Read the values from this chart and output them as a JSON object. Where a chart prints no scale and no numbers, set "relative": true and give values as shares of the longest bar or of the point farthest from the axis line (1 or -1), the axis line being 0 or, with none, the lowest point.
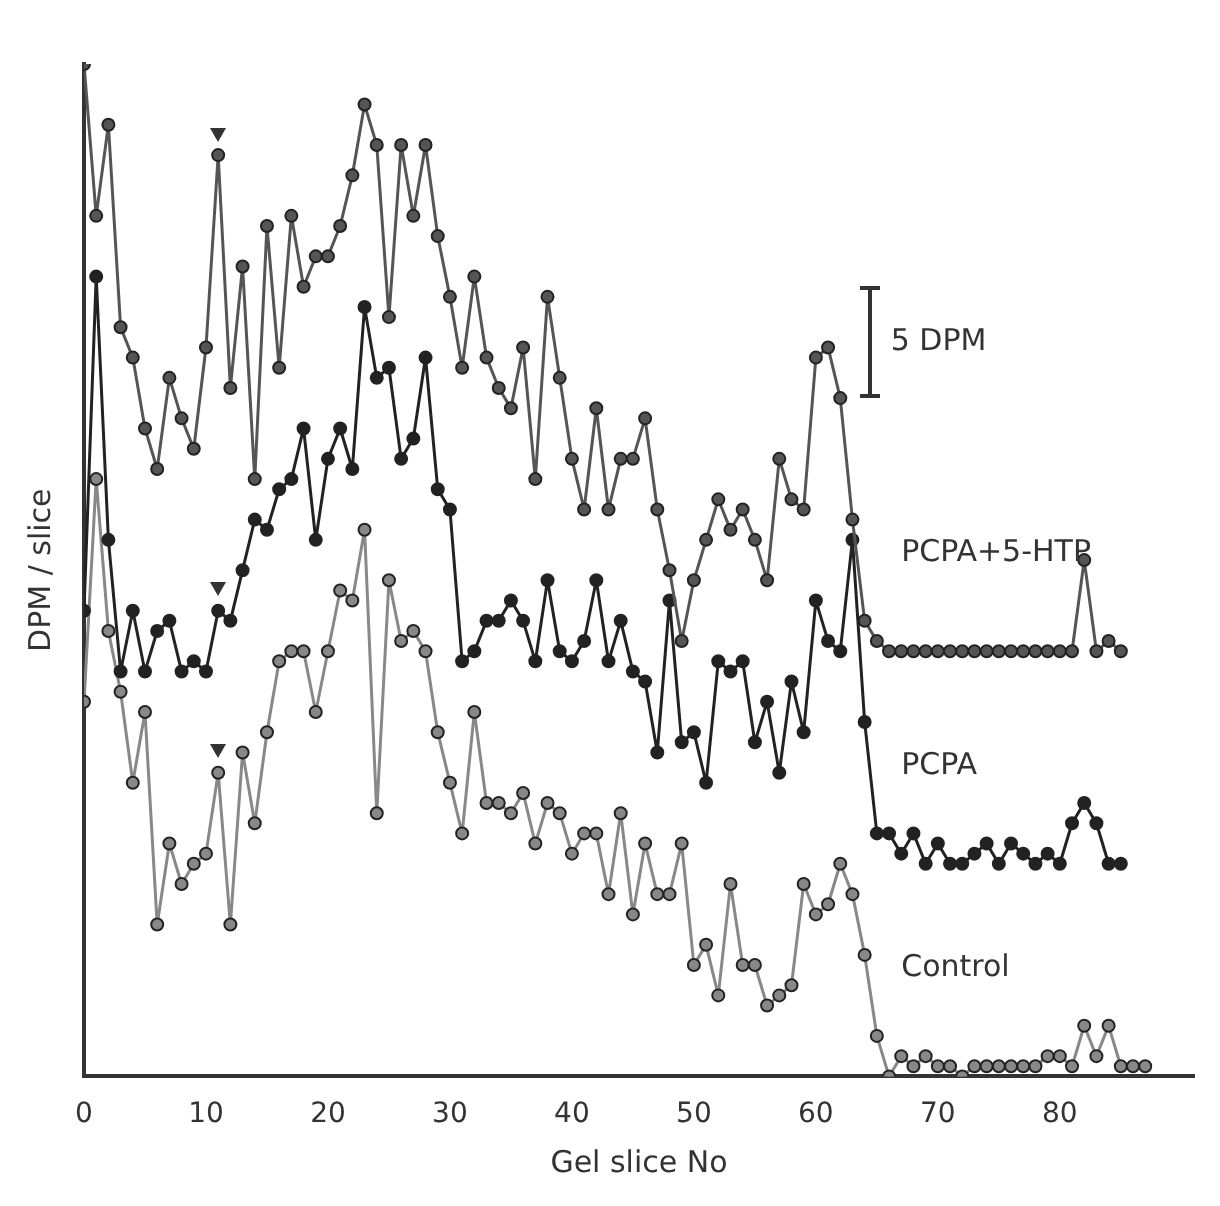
{
  "chart_data": {
    "type": "line",
    "xlabel": "Gel slice No",
    "ylabel": "DPM / slice",
    "relative": true,
    "x": [
      0,
      1,
      2,
      3,
      4,
      5,
      6,
      7,
      8,
      9,
      10,
      11,
      12,
      13,
      14,
      15,
      16,
      17,
      18,
      19,
      20,
      21,
      22,
      23,
      24,
      25,
      26,
      27,
      28,
      29,
      30,
      31,
      32,
      33,
      34,
      35,
      36,
      37,
      38,
      39,
      40,
      41,
      42,
      43,
      44,
      45,
      46,
      47,
      48,
      49,
      50,
      51,
      52,
      53,
      54,
      55,
      56,
      57,
      58,
      59,
      60,
      61,
      62,
      63,
      64,
      65,
      66,
      67,
      68,
      69,
      70,
      71,
      72,
      73,
      74,
      75,
      76,
      77,
      78,
      79,
      80,
      81,
      82,
      83,
      84,
      85,
      86,
      87
    ],
    "xlim": [
      0,
      91
    ],
    "xticks": [
      0,
      10,
      20,
      30,
      40,
      50,
      60,
      70,
      80
    ],
    "series": [
      {
        "name": "PCPA+5-HTP",
        "color": "#555555",
        "values": [
          1,
          0.85,
          0.94,
          0.74,
          0.71,
          0.64,
          0.6,
          0.69,
          0.65,
          0.62,
          0.72,
          0.91,
          0.68,
          0.8,
          0.59,
          0.84,
          0.7,
          0.85,
          0.78,
          0.81,
          0.81,
          0.84,
          0.89,
          0.96,
          0.92,
          0.75,
          0.92,
          0.85,
          0.92,
          0.83,
          0.77,
          0.7,
          0.79,
          0.71,
          0.68,
          0.66,
          0.72,
          0.59,
          0.77,
          0.69,
          0.61,
          0.56,
          0.66,
          0.56,
          0.61,
          0.61,
          0.65,
          0.56,
          0.5,
          0.43,
          0.49,
          0.53,
          0.57,
          0.54,
          0.56,
          0.53,
          0.49,
          0.61,
          0.57,
          0.56,
          0.71,
          0.72,
          0.67,
          0.55,
          0.45,
          0.43,
          0.42,
          0.42,
          0.42,
          0.42,
          0.42,
          0.42,
          0.42,
          0.42,
          0.42,
          0.42,
          0.42,
          0.42,
          0.42,
          0.42,
          0.42,
          0.42,
          0.51,
          0.42,
          0.43,
          0.42,
          null,
          null
        ]
      },
      {
        "name": "PCPA",
        "color": "#222222",
        "values": [
          0.46,
          0.79,
          0.53,
          0.4,
          0.46,
          0.4,
          0.44,
          0.45,
          0.4,
          0.41,
          0.4,
          0.46,
          0.45,
          0.5,
          0.55,
          0.54,
          0.58,
          0.59,
          0.64,
          0.53,
          0.61,
          0.64,
          0.6,
          0.76,
          0.69,
          0.7,
          0.61,
          0.63,
          0.71,
          0.58,
          0.56,
          0.41,
          0.42,
          0.45,
          0.45,
          0.47,
          0.45,
          0.41,
          0.49,
          0.42,
          0.41,
          0.43,
          0.49,
          0.41,
          0.45,
          0.4,
          0.39,
          0.32,
          0.47,
          0.33,
          0.34,
          0.29,
          0.41,
          0.4,
          0.41,
          0.33,
          0.37,
          0.3,
          0.39,
          0.34,
          0.47,
          0.43,
          0.42,
          0.53,
          0.35,
          0.24,
          0.24,
          0.22,
          0.24,
          0.21,
          0.23,
          0.21,
          0.21,
          0.22,
          0.23,
          0.21,
          0.23,
          0.22,
          0.21,
          0.22,
          0.21,
          0.25,
          0.27,
          0.25,
          0.21,
          0.21,
          null,
          null
        ]
      },
      {
        "name": "Control",
        "color": "#888888",
        "values": [
          0.37,
          0.59,
          0.44,
          0.38,
          0.29,
          0.36,
          0.15,
          0.23,
          0.19,
          0.21,
          0.22,
          0.3,
          0.15,
          0.32,
          0.25,
          0.34,
          0.41,
          0.42,
          0.42,
          0.36,
          0.42,
          0.48,
          0.47,
          0.54,
          0.26,
          0.49,
          0.43,
          0.44,
          0.42,
          0.34,
          0.29,
          0.24,
          0.36,
          0.27,
          0.27,
          0.26,
          0.28,
          0.23,
          0.27,
          0.26,
          0.22,
          0.24,
          0.24,
          0.18,
          0.26,
          0.16,
          0.23,
          0.18,
          0.18,
          0.23,
          0.11,
          0.13,
          0.08,
          0.19,
          0.11,
          0.11,
          0.07,
          0.08,
          0.09,
          0.19,
          0.16,
          0.17,
          0.21,
          0.18,
          0.12,
          0.04,
          0.0,
          0.02,
          0.01,
          0.02,
          0.01,
          0.01,
          0.0,
          0.01,
          0.01,
          0.01,
          0.01,
          0.01,
          0.01,
          0.02,
          0.02,
          0.01,
          0.05,
          0.02,
          0.05,
          0.01,
          0.01,
          0.01
        ]
      }
    ],
    "annotations": [
      "5 DPM"
    ],
    "legend": false,
    "grid": false,
    "marker": "circle",
    "line_style": "solid"
  }
}
